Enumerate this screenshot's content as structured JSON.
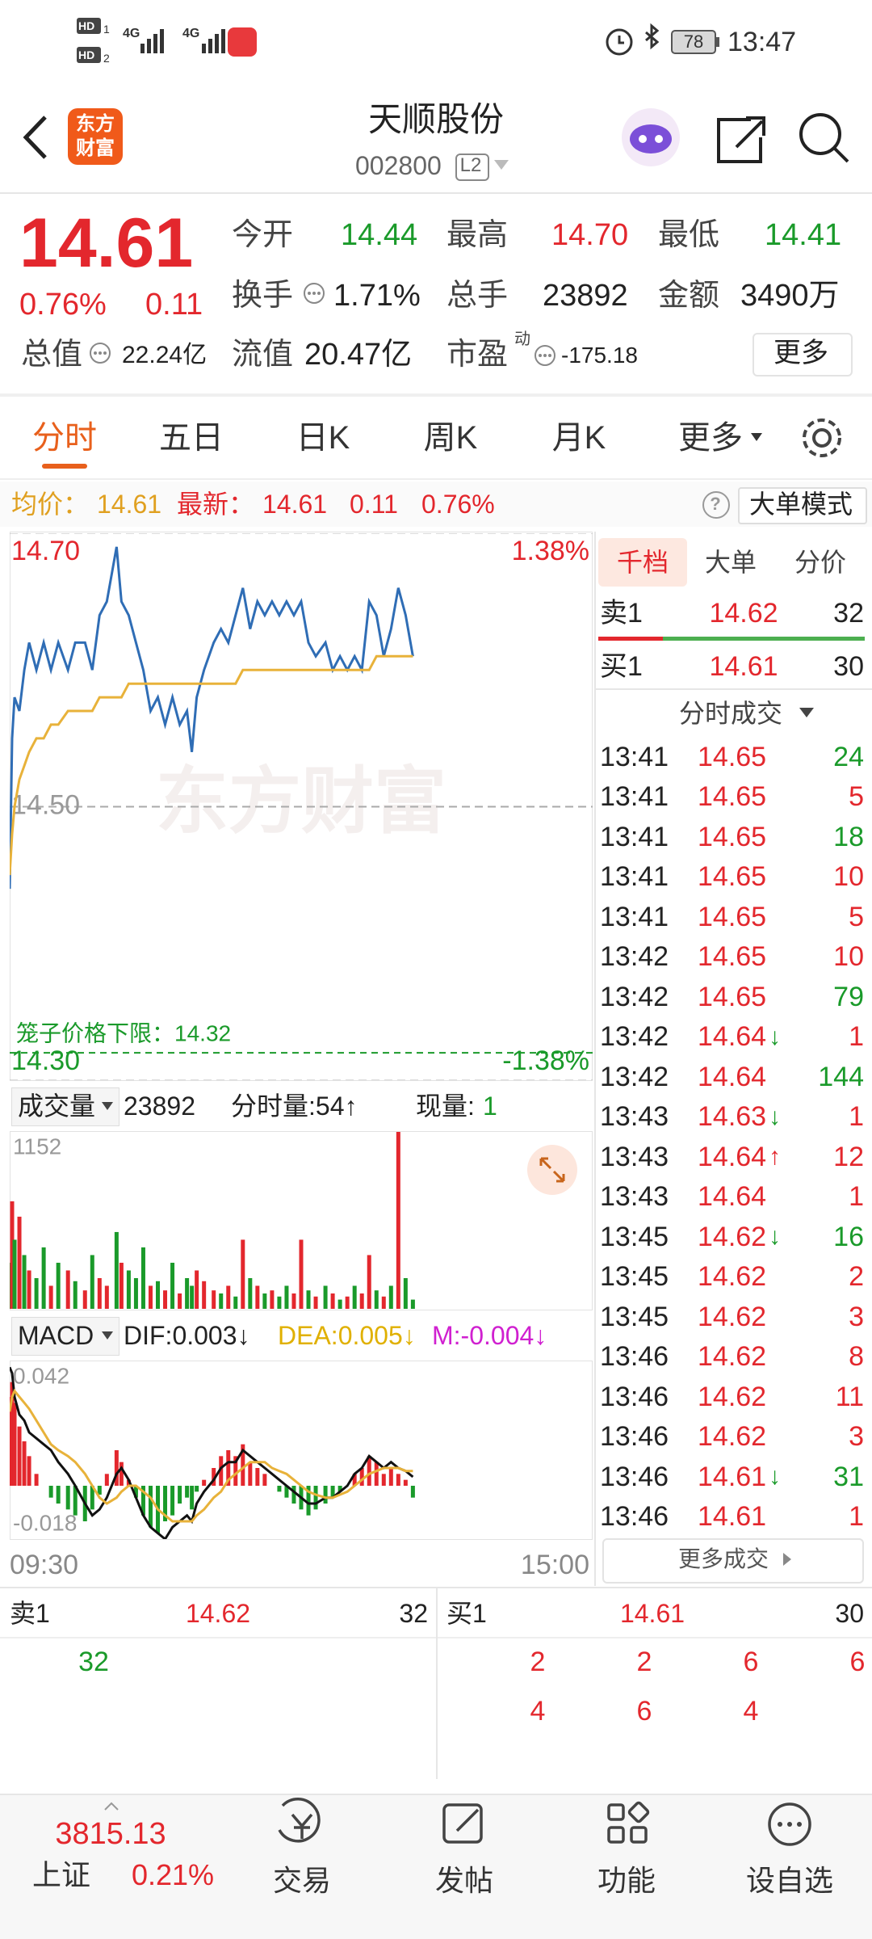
{
  "status_bar": {
    "sims": [
      {
        "badge": "HD",
        "slot": "1"
      },
      {
        "badge": "HD",
        "slot": "2"
      }
    ],
    "networks": [
      "4G",
      "4G"
    ],
    "battery": "78",
    "time": "13:47"
  },
  "header": {
    "logo": [
      "东方",
      "财富"
    ],
    "title": "天顺股份",
    "code": "002800",
    "level": "L2"
  },
  "quote": {
    "price": "14.61",
    "change_pct": "0.76%",
    "change": "0.11",
    "open_label": "今开",
    "open": "14.44",
    "high_label": "最高",
    "high": "14.70",
    "low_label": "最低",
    "low": "14.41",
    "turnover_label": "换手",
    "turnover": "1.71%",
    "volume_label": "总手",
    "volume": "23892",
    "amount_label": "金额",
    "amount": "3490万",
    "mcap_label": "总值",
    "mcap": "22.24亿",
    "float_label": "流值",
    "float": "20.47亿",
    "pe_label": "市盈",
    "pe_tag": "动",
    "pe": "-175.18",
    "more": "更多"
  },
  "tabs": [
    "分时",
    "五日",
    "日K",
    "周K",
    "月K",
    "更多"
  ],
  "info_bar": {
    "avg_label": "均价：",
    "avg": "14.61",
    "latest_label": "最新：",
    "latest": "14.61",
    "change": "0.11",
    "change_pct": "0.76%",
    "help": "?",
    "mode_button": "大单模式"
  },
  "watermark": "东方财富",
  "chart_data": [
    {
      "type": "line",
      "x": [
        0,
        1,
        2,
        4,
        6,
        8,
        11,
        14,
        17,
        20,
        24,
        27,
        31,
        34,
        37,
        40,
        44,
        46,
        49,
        52,
        55,
        58,
        61,
        64,
        67,
        70,
        73,
        75,
        77,
        80,
        84,
        87,
        90,
        93,
        96,
        99,
        102,
        105,
        108,
        111,
        114,
        117,
        120,
        123,
        126,
        130,
        133,
        136,
        139,
        142,
        145,
        148,
        151,
        154,
        157,
        160,
        163,
        166
      ],
      "series": [
        {
          "color": "#2f6db5",
          "values": [
            14.44,
            14.55,
            14.58,
            14.57,
            14.6,
            14.62,
            14.6,
            14.62,
            14.6,
            14.62,
            14.6,
            14.62,
            14.62,
            14.6,
            14.64,
            14.65,
            14.69,
            14.65,
            14.64,
            14.62,
            14.6,
            14.57,
            14.58,
            14.56,
            14.58,
            14.56,
            14.57,
            14.54,
            14.58,
            14.6,
            14.62,
            14.63,
            14.62,
            14.64,
            14.66,
            14.63,
            14.65,
            14.64,
            14.65,
            14.64,
            14.65,
            14.64,
            14.65,
            14.62,
            14.61,
            14.62,
            14.6,
            14.61,
            14.6,
            14.61,
            14.6,
            14.65,
            14.64,
            14.61,
            14.63,
            14.66,
            14.64,
            14.61
          ]
        },
        {
          "color": "#e8b23a",
          "values": [
            14.45,
            14.48,
            14.5,
            14.52,
            14.53,
            14.54,
            14.55,
            14.55,
            14.56,
            14.56,
            14.57,
            14.57,
            14.57,
            14.57,
            14.58,
            14.58,
            14.58,
            14.58,
            14.59,
            14.59,
            14.59,
            14.59,
            14.59,
            14.59,
            14.59,
            14.59,
            14.59,
            14.59,
            14.59,
            14.59,
            14.59,
            14.59,
            14.59,
            14.59,
            14.6,
            14.6,
            14.6,
            14.6,
            14.6,
            14.6,
            14.6,
            14.6,
            14.6,
            14.6,
            14.6,
            14.6,
            14.6,
            14.6,
            14.6,
            14.6,
            14.6,
            14.6,
            14.61,
            14.61,
            14.61,
            14.61,
            14.61,
            14.61
          ]
        }
      ],
      "xlim": [
        0,
        240
      ],
      "xticks": [
        {
          "value": 0,
          "label": "09:30"
        },
        {
          "value": 240,
          "label": "15:00"
        }
      ],
      "ylim": [
        14.3,
        14.7
      ],
      "yticks": [
        {
          "value": 14.3,
          "label": "14.30"
        },
        {
          "value": 14.5,
          "label": "14.50"
        },
        {
          "value": 14.7,
          "label": "14.70"
        }
      ],
      "y2lim": [
        -1.38,
        1.38
      ],
      "y2ticks": [
        {
          "value": -1.38,
          "label": "-1.38%"
        },
        {
          "value": 1.38,
          "label": "1.38%"
        }
      ],
      "grid": true,
      "annotation": {
        "label": "笼子价格下限：",
        "value": 14.32,
        "color": "#1a9a2a"
      }
    },
    {
      "type": "bar",
      "x": [
        0,
        1,
        2,
        4,
        6,
        8,
        11,
        14,
        17,
        20,
        24,
        27,
        31,
        34,
        37,
        40,
        44,
        46,
        49,
        52,
        55,
        58,
        61,
        64,
        67,
        70,
        73,
        75,
        77,
        80,
        84,
        87,
        90,
        93,
        96,
        99,
        102,
        105,
        108,
        111,
        114,
        117,
        120,
        123,
        126,
        130,
        133,
        136,
        139,
        142,
        145,
        148,
        151,
        154,
        157,
        160,
        163,
        166
      ],
      "values": [
        300,
        700,
        450,
        600,
        350,
        250,
        200,
        400,
        150,
        300,
        250,
        180,
        120,
        350,
        200,
        150,
        500,
        300,
        250,
        200,
        400,
        150,
        180,
        120,
        300,
        100,
        200,
        150,
        250,
        180,
        120,
        100,
        150,
        80,
        450,
        200,
        150,
        100,
        120,
        80,
        150,
        100,
        450,
        120,
        80,
        150,
        100,
        60,
        80,
        150,
        100,
        350,
        120,
        80,
        150,
        1152,
        200,
        60
      ],
      "colors": [
        "#1a9a2a",
        "#e3272d",
        "#1a9a2a",
        "#e3272d",
        "#1a9a2a",
        "#e3272d",
        "#1a9a2a",
        "#1a9a2a",
        "#e3272d",
        "#1a9a2a",
        "#e3272d",
        "#1a9a2a",
        "#e3272d",
        "#1a9a2a",
        "#e3272d",
        "#e3272d",
        "#1a9a2a",
        "#e3272d",
        "#1a9a2a",
        "#1a9a2a",
        "#1a9a2a",
        "#e3272d",
        "#1a9a2a",
        "#e3272d",
        "#1a9a2a",
        "#e3272d",
        "#1a9a2a",
        "#1a9a2a",
        "#e3272d",
        "#e3272d",
        "#e3272d",
        "#1a9a2a",
        "#e3272d",
        "#1a9a2a",
        "#e3272d",
        "#1a9a2a",
        "#e3272d",
        "#1a9a2a",
        "#e3272d",
        "#1a9a2a",
        "#1a9a2a",
        "#e3272d",
        "#e3272d",
        "#1a9a2a",
        "#e3272d",
        "#1a9a2a",
        "#e3272d",
        "#1a9a2a",
        "#e3272d",
        "#1a9a2a",
        "#e3272d",
        "#e3272d",
        "#1a9a2a",
        "#e3272d",
        "#1a9a2a",
        "#e3272d",
        "#1a9a2a",
        "#1a9a2a"
      ],
      "xlim": [
        0,
        240
      ],
      "ylim": [
        0,
        1152
      ],
      "yticks": [
        1152
      ]
    },
    {
      "type": "combo",
      "x": [
        0,
        1,
        2,
        4,
        6,
        8,
        11,
        14,
        17,
        20,
        24,
        27,
        31,
        34,
        37,
        40,
        44,
        46,
        49,
        52,
        55,
        58,
        61,
        64,
        67,
        70,
        73,
        75,
        77,
        80,
        84,
        87,
        90,
        93,
        96,
        99,
        102,
        105,
        108,
        111,
        114,
        117,
        120,
        123,
        126,
        130,
        133,
        136,
        139,
        142,
        145,
        148,
        151,
        154,
        157,
        160,
        163,
        166
      ],
      "values": [
        0.03,
        0.035,
        0.028,
        0.02,
        0.015,
        0.01,
        0.004,
        0.0,
        -0.004,
        -0.006,
        -0.008,
        -0.01,
        -0.012,
        -0.008,
        -0.003,
        0.004,
        0.012,
        0.008,
        0.002,
        -0.004,
        -0.01,
        -0.014,
        -0.016,
        -0.012,
        -0.01,
        -0.006,
        -0.004,
        -0.008,
        -0.002,
        0.002,
        0.006,
        0.01,
        0.012,
        0.01,
        0.014,
        0.008,
        0.006,
        0.004,
        0.0,
        -0.002,
        -0.004,
        -0.006,
        -0.008,
        -0.01,
        -0.008,
        -0.006,
        -0.004,
        -0.002,
        0.0,
        0.004,
        0.006,
        0.01,
        0.008,
        0.004,
        0.006,
        0.004,
        0.002,
        -0.004
      ],
      "up_color": "#e3272d",
      "down_color": "#1a9a2a",
      "series": [
        {
          "color": "#111111",
          "values": [
            0.04,
            0.038,
            0.03,
            0.024,
            0.022,
            0.018,
            0.016,
            0.014,
            0.012,
            0.008,
            0.004,
            0.0,
            -0.006,
            -0.01,
            -0.008,
            -0.004,
            0.004,
            0.006,
            0.002,
            -0.004,
            -0.01,
            -0.014,
            -0.016,
            -0.018,
            -0.014,
            -0.012,
            -0.01,
            -0.012,
            -0.006,
            -0.002,
            0.002,
            0.006,
            0.008,
            0.008,
            0.012,
            0.01,
            0.008,
            0.006,
            0.004,
            0.002,
            0.0,
            -0.002,
            -0.004,
            -0.006,
            -0.006,
            -0.004,
            -0.004,
            -0.002,
            0.0,
            0.004,
            0.006,
            0.01,
            0.008,
            0.006,
            0.008,
            0.006,
            0.005,
            0.003
          ]
        },
        {
          "color": "#e8b23a",
          "values": [
            0.025,
            0.03,
            0.032,
            0.03,
            0.028,
            0.026,
            0.022,
            0.018,
            0.014,
            0.012,
            0.01,
            0.008,
            0.004,
            0.0,
            -0.004,
            -0.006,
            -0.004,
            -0.002,
            0.0,
            0.0,
            -0.002,
            -0.004,
            -0.008,
            -0.01,
            -0.012,
            -0.012,
            -0.012,
            -0.012,
            -0.01,
            -0.008,
            -0.004,
            -0.002,
            0.002,
            0.004,
            0.006,
            0.008,
            0.008,
            0.008,
            0.006,
            0.005,
            0.004,
            0.002,
            0.0,
            -0.002,
            -0.003,
            -0.004,
            -0.004,
            -0.003,
            -0.002,
            0.0,
            0.002,
            0.004,
            0.005,
            0.006,
            0.006,
            0.006,
            0.005,
            0.005
          ]
        }
      ],
      "xlim": [
        0,
        240
      ],
      "ylim": [
        -0.018,
        0.042
      ],
      "yticks": [
        -0.018,
        0.042
      ]
    }
  ],
  "volume_bar": {
    "selector": "成交量",
    "total": "23892",
    "minute": "分时量:54↑",
    "current_label": "现量:",
    "current": "1"
  },
  "macd_bar": {
    "selector": "MACD",
    "dif": "DIF:0.003↓",
    "dea": "DEA:0.005↓",
    "m": "M:-0.004↓"
  },
  "right_panel": {
    "tabs": [
      "千档",
      "大单",
      "分价"
    ],
    "ask": {
      "label": "卖1",
      "price": "14.62",
      "volume": "32"
    },
    "bid": {
      "label": "买1",
      "price": "14.61",
      "volume": "30"
    },
    "trades_title": "分时成交",
    "trades": [
      {
        "time": "13:41",
        "price": "14.65",
        "volume": "24",
        "color": "#1a9a2a"
      },
      {
        "time": "13:41",
        "price": "14.65",
        "volume": "5",
        "color": "#e3272d"
      },
      {
        "time": "13:41",
        "price": "14.65",
        "volume": "18",
        "color": "#1a9a2a"
      },
      {
        "time": "13:41",
        "price": "14.65",
        "volume": "10",
        "color": "#e3272d"
      },
      {
        "time": "13:41",
        "price": "14.65",
        "volume": "5",
        "color": "#e3272d"
      },
      {
        "time": "13:42",
        "price": "14.65",
        "volume": "10",
        "color": "#e3272d"
      },
      {
        "time": "13:42",
        "price": "14.65",
        "volume": "79",
        "color": "#1a9a2a"
      },
      {
        "time": "13:42",
        "price": "14.64",
        "arrow": "↓",
        "volume": "1",
        "color": "#e3272d"
      },
      {
        "time": "13:42",
        "price": "14.64",
        "volume": "144",
        "color": "#1a9a2a"
      },
      {
        "time": "13:43",
        "price": "14.63",
        "arrow": "↓",
        "volume": "1",
        "color": "#e3272d"
      },
      {
        "time": "13:43",
        "price": "14.64",
        "arrow": "↑",
        "volume": "12",
        "color": "#e3272d"
      },
      {
        "time": "13:43",
        "price": "14.64",
        "volume": "1",
        "color": "#e3272d"
      },
      {
        "time": "13:45",
        "price": "14.62",
        "arrow": "↓",
        "volume": "16",
        "color": "#1a9a2a"
      },
      {
        "time": "13:45",
        "price": "14.62",
        "volume": "2",
        "color": "#e3272d"
      },
      {
        "time": "13:45",
        "price": "14.62",
        "volume": "3",
        "color": "#e3272d"
      },
      {
        "time": "13:46",
        "price": "14.62",
        "volume": "8",
        "color": "#e3272d"
      },
      {
        "time": "13:46",
        "price": "14.62",
        "volume": "11",
        "color": "#e3272d"
      },
      {
        "time": "13:46",
        "price": "14.62",
        "volume": "3",
        "color": "#e3272d"
      },
      {
        "time": "13:46",
        "price": "14.61",
        "arrow": "↓",
        "volume": "31",
        "color": "#1a9a2a"
      },
      {
        "time": "13:46",
        "price": "14.61",
        "volume": "1",
        "color": "#e3272d"
      }
    ],
    "more_trades": "更多成交"
  },
  "order_book": {
    "ask": {
      "label": "卖1",
      "price": "14.62",
      "volume": "32"
    },
    "bid": {
      "label": "买1",
      "price": "14.61",
      "volume": "30"
    },
    "ask_queue": [
      "32"
    ],
    "bid_queue": [
      "2",
      "2",
      "6",
      "6",
      "4",
      "6",
      "4"
    ]
  },
  "bottom_nav": {
    "index_value": "3815.13",
    "index_name": "上证",
    "index_change": "0.21%",
    "items": [
      "交易",
      "发帖",
      "功能",
      "设自选"
    ]
  }
}
